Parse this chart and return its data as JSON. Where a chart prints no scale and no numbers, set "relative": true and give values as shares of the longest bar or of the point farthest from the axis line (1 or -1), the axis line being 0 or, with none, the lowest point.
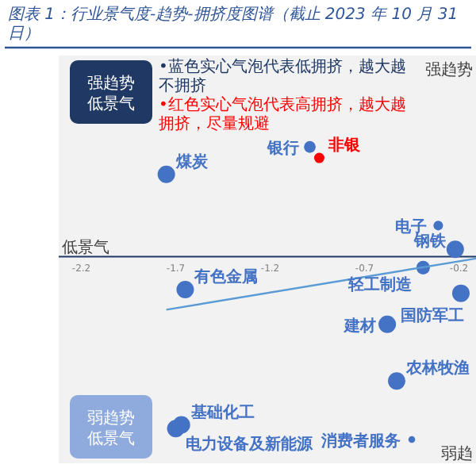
{
  "chart_data": {
    "type": "bubble",
    "title": "图表 1：行业景气度-趋势-拥挤度图谱（截止 2023 年 10 月 31 日）",
    "relative": true,
    "xlim": [
      -2.32,
      -0.11
    ],
    "xticks": [
      -2.2,
      -1.7,
      -1.2,
      -0.7,
      -0.2
    ],
    "series": [
      {
        "type": "bubble",
        "x": [
          -0.99,
          -0.94,
          -1.75,
          -0.31,
          -0.22,
          -0.39,
          -1.65,
          -0.19,
          -0.58,
          -0.53,
          -1.67,
          -1.7,
          -0.45
        ],
        "values": [
          0.6,
          0.54,
          0.45,
          0.17,
          0.04,
          -0.06,
          -0.18,
          -0.2,
          -0.37,
          -0.68,
          -0.92,
          -0.94,
          -1.0
        ],
        "sizes": [
          0.45,
          0.35,
          1,
          0.3,
          1,
          0.6,
          1,
          1,
          1,
          1,
          1,
          1,
          0.15
        ],
        "colors": [
          "#4472c4",
          "#ff0000",
          "#4472c4",
          "#4472c4",
          "#4472c4",
          "#4472c4",
          "#4472c4",
          "#4472c4",
          "#4472c4",
          "#4472c4",
          "#4472c4",
          "#4472c4",
          "#4472c4"
        ]
      },
      {
        "type": "line",
        "color": "#5b9bd5",
        "x": [
          -1.75,
          -0.11
        ],
        "values": [
          -0.29,
          -0.01
        ]
      }
    ],
    "annotations": [
      "•蓝色实心气泡代表低拥挤，越大越不拥挤",
      "•红色实心气泡代表高拥挤，越大越拥挤，尽量规避",
      "强趋势",
      "低景气",
      "弱趋势",
      "低景气",
      "低景气",
      "强趋势",
      "弱趋",
      {
        "text": "银行",
        "x": -0.99,
        "y": 0.6
      },
      {
        "text": "非银",
        "x": -0.94,
        "y": 0.54
      },
      {
        "text": "煤炭",
        "x": -1.75,
        "y": 0.45
      },
      {
        "text": "电子",
        "x": -0.31,
        "y": 0.17
      },
      {
        "text": "钢铁",
        "x": -0.22,
        "y": 0.04
      },
      {
        "text": "轻工制造",
        "x": -0.39,
        "y": -0.06
      },
      {
        "text": "有色金属",
        "x": -1.65,
        "y": -0.18
      },
      {
        "text": "国防军工",
        "x": -0.19,
        "y": -0.2
      },
      {
        "text": "建材",
        "x": -0.58,
        "y": -0.37
      },
      {
        "text": "农林牧渔",
        "x": -0.53,
        "y": -0.68
      },
      {
        "text": "基础化工",
        "x": -1.67,
        "y": -0.92
      },
      {
        "text": "电力设备及新能源",
        "x": -1.7,
        "y": -0.94
      },
      {
        "text": "消费者服务",
        "x": -0.45,
        "y": -1.0
      }
    ]
  }
}
